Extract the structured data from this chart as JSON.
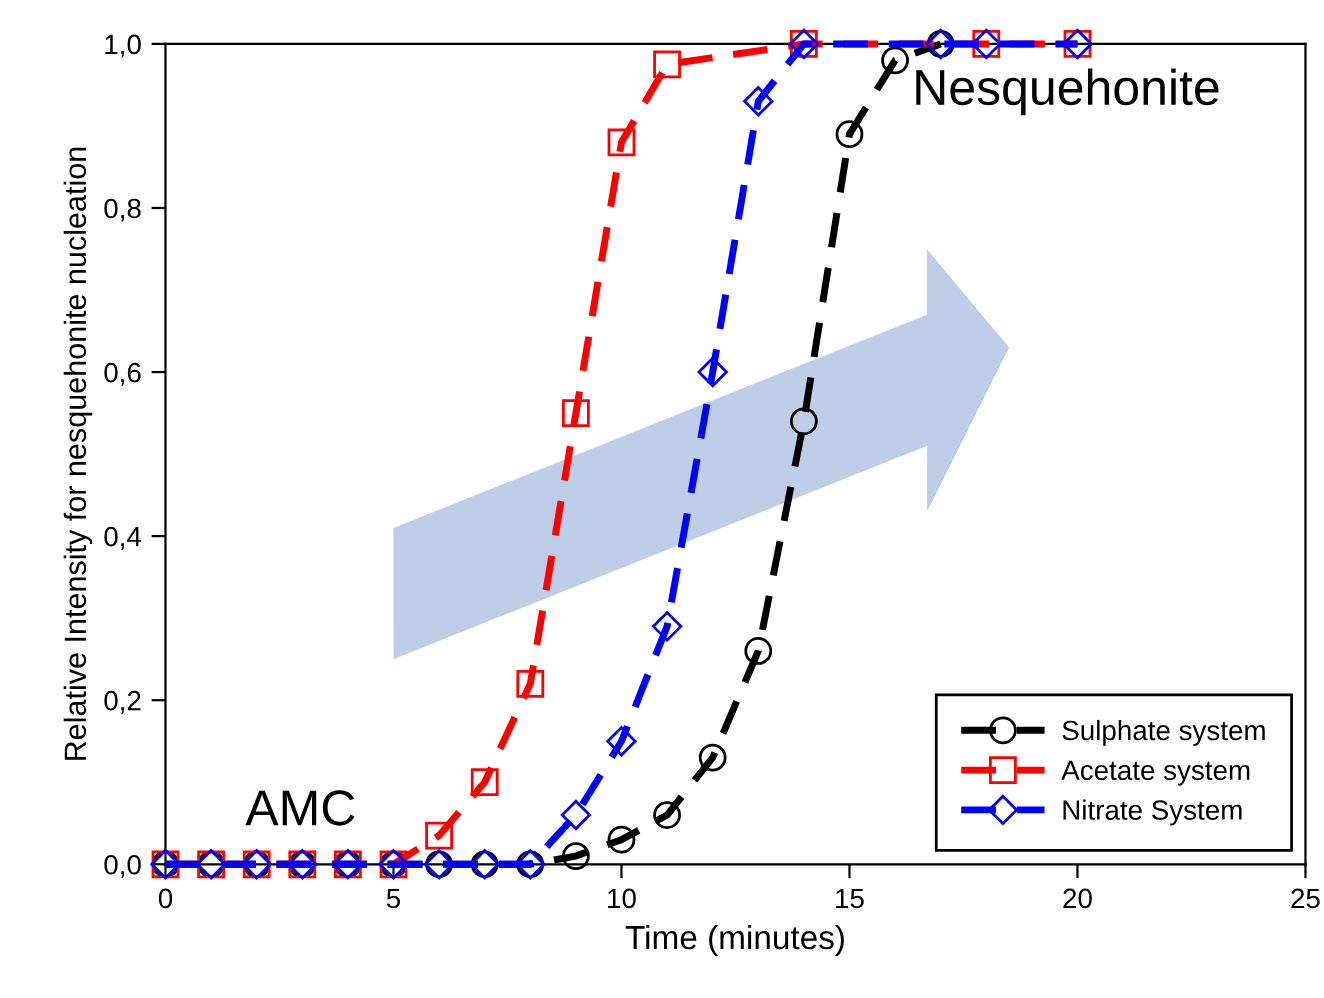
{
  "chart_data": {
    "type": "line",
    "xlabel": "Time (minutes)",
    "ylabel": "Relative Intensity for nesquehonite nucleation",
    "xlim": [
      0,
      25
    ],
    "xticks": [
      0,
      5,
      10,
      15,
      20,
      25
    ],
    "ylim": [
      0,
      1
    ],
    "yticks": [
      {
        "value": 0,
        "label": "0,0"
      },
      {
        "value": 0.2,
        "label": "0,2"
      },
      {
        "value": 0.4,
        "label": "0,4"
      },
      {
        "value": 0.6,
        "label": "0,6"
      },
      {
        "value": 0.8,
        "label": "0,8"
      },
      {
        "value": 1,
        "label": "1,0"
      }
    ],
    "grid": false,
    "legend": "bottom right",
    "line_style": "dashed",
    "annotations": [
      "AMC",
      "Nesquehonite"
    ],
    "series": [
      {
        "name": "Sulphate system",
        "color": "#000000",
        "marker": "circle",
        "x": [
          0,
          1,
          2,
          3,
          4,
          5,
          6,
          7,
          8,
          9,
          10,
          11,
          12,
          13,
          14,
          15,
          16,
          17
        ],
        "values": [
          0,
          0,
          0,
          0,
          0,
          0,
          0,
          0,
          0,
          0.01,
          0.03,
          0.06,
          0.13,
          0.26,
          0.54,
          0.89,
          0.98,
          1.0
        ]
      },
      {
        "name": "Acetate system",
        "color": "#ff0000",
        "marker": "square",
        "x": [
          0,
          1,
          2,
          3,
          4,
          5,
          6,
          7,
          8,
          9,
          10,
          11,
          14,
          18,
          20
        ],
        "values": [
          0,
          0,
          0,
          0,
          0,
          0,
          0.035,
          0.1,
          0.22,
          0.55,
          0.88,
          0.975,
          1.0,
          1.0,
          1.0
        ]
      },
      {
        "name": "Nitrate System",
        "color": "#0000ff",
        "marker": "diamond",
        "x": [
          0,
          1,
          2,
          3,
          4,
          5,
          6,
          7,
          8,
          9,
          10,
          11,
          12,
          13,
          14,
          17,
          18,
          20
        ],
        "values": [
          0,
          0,
          0,
          0,
          0,
          0,
          0,
          0,
          0,
          0.06,
          0.15,
          0.29,
          0.6,
          0.93,
          1.0,
          1.0,
          1.0,
          1.0
        ]
      }
    ]
  }
}
